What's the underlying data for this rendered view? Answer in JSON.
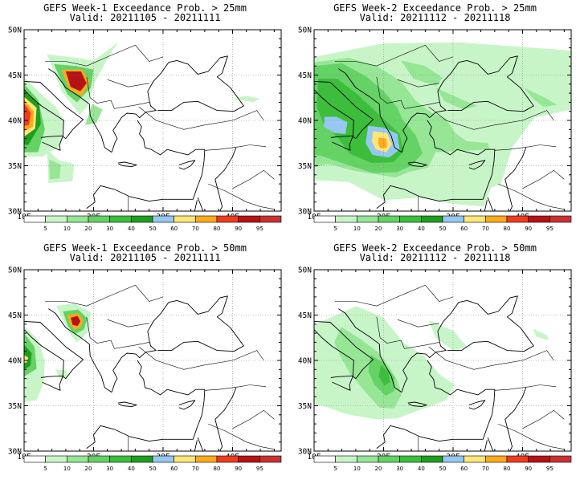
{
  "colors": {
    "c5": "#ffffff",
    "c10": "#c8f5c8",
    "c20": "#96e696",
    "c30": "#64d264",
    "c40": "#3cbe3c",
    "c50": "#1e9e1e",
    "c60": "#96c8f0",
    "c70": "#ffe678",
    "c80": "#ffaa1e",
    "c90": "#f03c1e",
    "c95": "#b41414",
    "c100": "#c83232"
  },
  "axes": {
    "lat_labels": [
      "50N",
      "45N",
      "40N",
      "35N",
      "30N"
    ],
    "lon_labels": [
      "10E",
      "20E",
      "30E",
      "40E"
    ]
  },
  "colorbar": {
    "labels": [
      "5",
      "10",
      "20",
      "30",
      "40",
      "50",
      "60",
      "70",
      "80",
      "90",
      "95"
    ]
  },
  "panels": [
    {
      "title": "GEFS Week-1 Exceedance Prob. > 25mm",
      "valid": "Valid: 20211105 - 20211111"
    },
    {
      "title": "GEFS Week-2 Exceedance Prob. > 25mm",
      "valid": "Valid: 20211112 - 20211118"
    },
    {
      "title": "GEFS Week-1 Exceedance Prob. > 50mm",
      "valid": "Valid: 20211105 - 20211111"
    },
    {
      "title": "GEFS Week-2 Exceedance Prob. > 50mm",
      "valid": "Valid: 20211112 - 20211118"
    }
  ]
}
